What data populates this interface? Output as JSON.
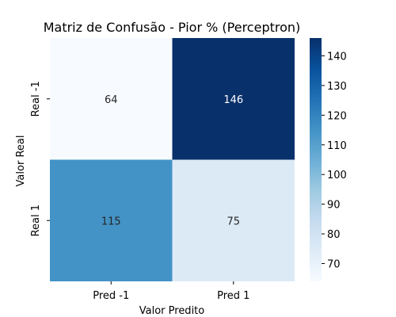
{
  "chart_data": {
    "type": "heatmap",
    "title": "Matriz de Confusão - Pior % (Perceptron)",
    "xlabel": "Valor Predito",
    "ylabel": "Valor Real",
    "x_categories": [
      "Pred -1",
      "Pred 1"
    ],
    "y_categories": [
      "Real -1",
      "Real 1"
    ],
    "values": [
      [
        64,
        146
      ],
      [
        115,
        75
      ]
    ],
    "colormap": "Blues",
    "colorbar": {
      "min": 64,
      "max": 146,
      "ticks": [
        70,
        80,
        90,
        100,
        110,
        120,
        130,
        140
      ]
    },
    "colors": {
      "light_low": "#f7fbff",
      "dark_high": "#08306b"
    }
  }
}
